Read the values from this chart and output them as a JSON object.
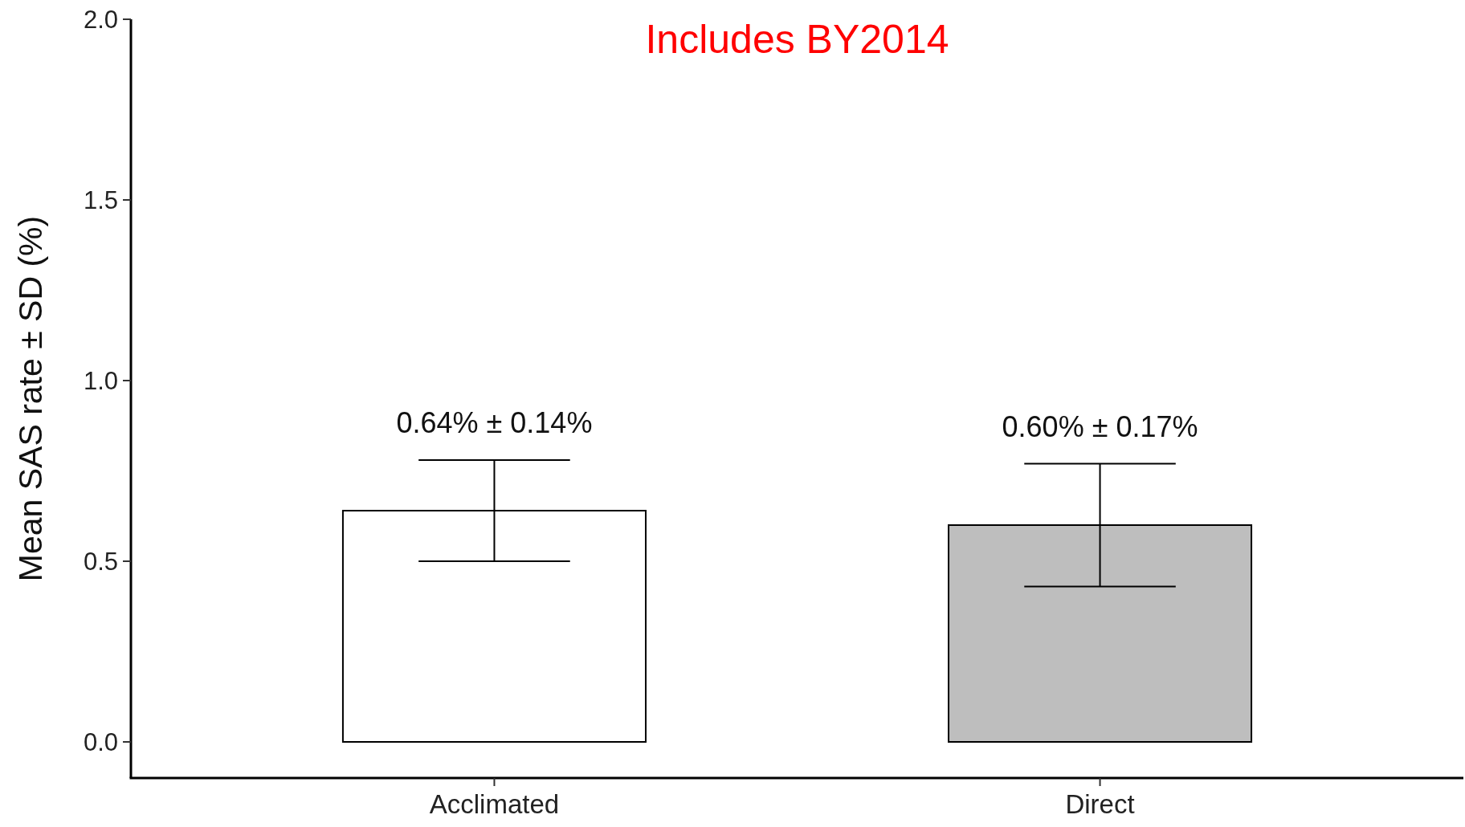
{
  "chart_data": {
    "type": "bar",
    "title": "Includes BY2014",
    "ylabel": "Mean SAS rate ± SD (%)",
    "categories": [
      "Acclimated",
      "Direct"
    ],
    "values": [
      0.64,
      0.6
    ],
    "colors": [
      "#ffffff",
      "#bebebe"
    ],
    "errors": [
      0.14,
      0.17
    ],
    "value_labels": [
      "0.64% ± 0.14%",
      "0.60% ± 0.17%"
    ],
    "ylim": [
      -0.1,
      2.0
    ],
    "yticks": [
      {
        "value": 0,
        "label": "0.0"
      },
      0.5,
      {
        "value": 1,
        "label": "1.0"
      },
      1.5,
      {
        "value": 2,
        "label": "2.0"
      }
    ]
  }
}
